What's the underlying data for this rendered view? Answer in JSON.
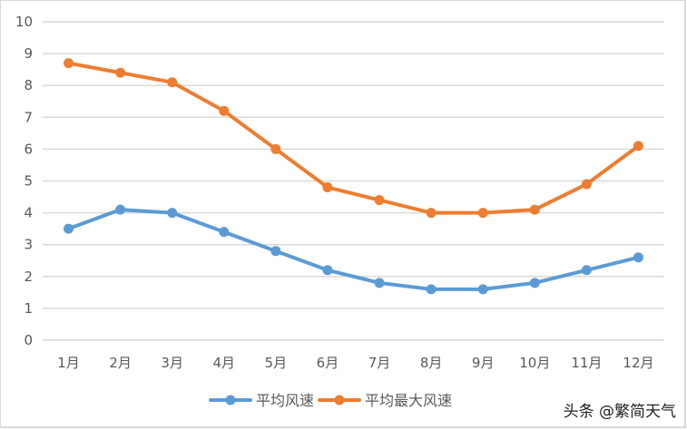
{
  "chart_data": {
    "type": "line",
    "title": "",
    "xlabel": "",
    "ylabel": "",
    "categories": [
      "1月",
      "2月",
      "3月",
      "4月",
      "5月",
      "6月",
      "7月",
      "8月",
      "9月",
      "10月",
      "11月",
      "12月"
    ],
    "series": [
      {
        "name": "平均风速",
        "color": "#5b9bd5",
        "values": [
          3.5,
          4.1,
          4.0,
          3.4,
          2.8,
          2.2,
          1.8,
          1.6,
          1.6,
          1.8,
          2.2,
          2.6
        ]
      },
      {
        "name": "平均最大风速",
        "color": "#ed7d31",
        "values": [
          8.7,
          8.4,
          8.1,
          7.2,
          6.0,
          4.8,
          4.4,
          4.0,
          4.0,
          4.1,
          4.9,
          6.1
        ]
      }
    ],
    "ylim": [
      0,
      10
    ],
    "yticks": [
      "0",
      "1",
      "2",
      "3",
      "4",
      "5",
      "6",
      "7",
      "8",
      "9",
      "10"
    ],
    "grid": true,
    "legend_position": "bottom",
    "markers": true
  },
  "legend": {
    "items": [
      {
        "label": "平均风速",
        "color": "#5b9bd5"
      },
      {
        "label": "平均最大风速",
        "color": "#ed7d31"
      }
    ]
  },
  "watermark": "头条 @繁简天气"
}
